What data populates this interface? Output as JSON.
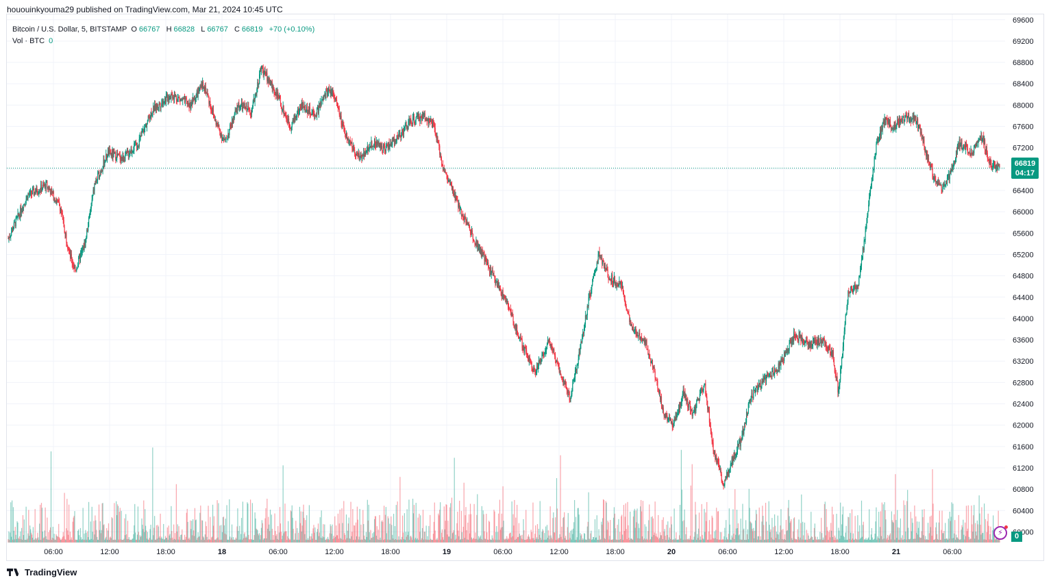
{
  "header": {
    "published_line": "hououinkyouma29 published on TradingView.com, Mar 21, 2024 10:45 UTC"
  },
  "legend": {
    "symbol": "Bitcoin / U.S. Dollar, 5, BITSTAMP",
    "o_label": "O",
    "o_value": "66767",
    "h_label": "H",
    "h_value": "66828",
    "l_label": "L",
    "l_value": "66767",
    "c_label": "C",
    "c_value": "66819",
    "change": "+70 (+0.10%)",
    "vol_label": "Vol · BTC",
    "vol_value": "0"
  },
  "price_tag": {
    "price": "66819",
    "countdown": "04:17"
  },
  "volume_tag": "0",
  "footer": {
    "brand": "TradingView"
  },
  "colors": {
    "up": "#089981",
    "down": "#f23645",
    "grid": "#f0f3fa",
    "axis_text": "#131722"
  },
  "chart_data": {
    "type": "candlestick",
    "timeframe": "5",
    "x_ticks": [
      "06:00",
      "12:00",
      "18:00",
      "18",
      "06:00",
      "12:00",
      "18:00",
      "19",
      "06:00",
      "12:00",
      "18:00",
      "20",
      "06:00",
      "12:00",
      "18:00",
      "21",
      "06:00"
    ],
    "y_ticks": [
      69600,
      69200,
      68800,
      68400,
      68000,
      67600,
      67200,
      66800,
      66400,
      66000,
      65600,
      65200,
      64800,
      64400,
      64000,
      63600,
      63200,
      62800,
      62400,
      62000,
      61600,
      61200,
      60800,
      60400,
      60000
    ],
    "ylim": [
      59800,
      69700
    ],
    "current_price": 66819,
    "price_path": [
      [
        0,
        65500
      ],
      [
        10,
        66300
      ],
      [
        20,
        66500
      ],
      [
        27,
        66100
      ],
      [
        32,
        65200
      ],
      [
        35,
        64900
      ],
      [
        40,
        65400
      ],
      [
        45,
        66500
      ],
      [
        52,
        67100
      ],
      [
        60,
        67000
      ],
      [
        68,
        67300
      ],
      [
        75,
        67900
      ],
      [
        85,
        68200
      ],
      [
        95,
        68000
      ],
      [
        102,
        68400
      ],
      [
        108,
        67700
      ],
      [
        113,
        67300
      ],
      [
        120,
        68000
      ],
      [
        127,
        67900
      ],
      [
        132,
        68700
      ],
      [
        140,
        68200
      ],
      [
        147,
        67600
      ],
      [
        153,
        68000
      ],
      [
        160,
        67800
      ],
      [
        167,
        68300
      ],
      [
        170,
        68200
      ],
      [
        175,
        67500
      ],
      [
        183,
        67000
      ],
      [
        190,
        67300
      ],
      [
        197,
        67200
      ],
      [
        203,
        67400
      ],
      [
        210,
        67700
      ],
      [
        217,
        67800
      ],
      [
        222,
        67600
      ],
      [
        227,
        66800
      ],
      [
        235,
        66100
      ],
      [
        243,
        65500
      ],
      [
        250,
        65000
      ],
      [
        260,
        64300
      ],
      [
        268,
        63500
      ],
      [
        275,
        63000
      ],
      [
        282,
        63600
      ],
      [
        288,
        63000
      ],
      [
        293,
        62500
      ],
      [
        298,
        63400
      ],
      [
        303,
        64400
      ],
      [
        308,
        65200
      ],
      [
        313,
        64800
      ],
      [
        320,
        64600
      ],
      [
        325,
        63800
      ],
      [
        332,
        63600
      ],
      [
        337,
        63000
      ],
      [
        342,
        62200
      ],
      [
        347,
        62000
      ],
      [
        352,
        62600
      ],
      [
        357,
        62200
      ],
      [
        363,
        62800
      ],
      [
        368,
        61500
      ],
      [
        373,
        60900
      ],
      [
        377,
        61300
      ],
      [
        382,
        61700
      ],
      [
        387,
        62500
      ],
      [
        395,
        62900
      ],
      [
        402,
        63100
      ],
      [
        410,
        63700
      ],
      [
        418,
        63500
      ],
      [
        425,
        63600
      ],
      [
        430,
        63300
      ],
      [
        433,
        62600
      ],
      [
        438,
        64500
      ],
      [
        443,
        64600
      ],
      [
        447,
        65600
      ],
      [
        450,
        66500
      ],
      [
        453,
        67300
      ],
      [
        457,
        67700
      ],
      [
        462,
        67600
      ],
      [
        468,
        67800
      ],
      [
        474,
        67700
      ],
      [
        478,
        67200
      ],
      [
        482,
        66700
      ],
      [
        487,
        66400
      ],
      [
        492,
        66800
      ],
      [
        496,
        67300
      ],
      [
        502,
        67100
      ],
      [
        508,
        67400
      ],
      [
        512,
        66900
      ],
      [
        517,
        66819
      ]
    ],
    "volume_max_btc": 1
  }
}
